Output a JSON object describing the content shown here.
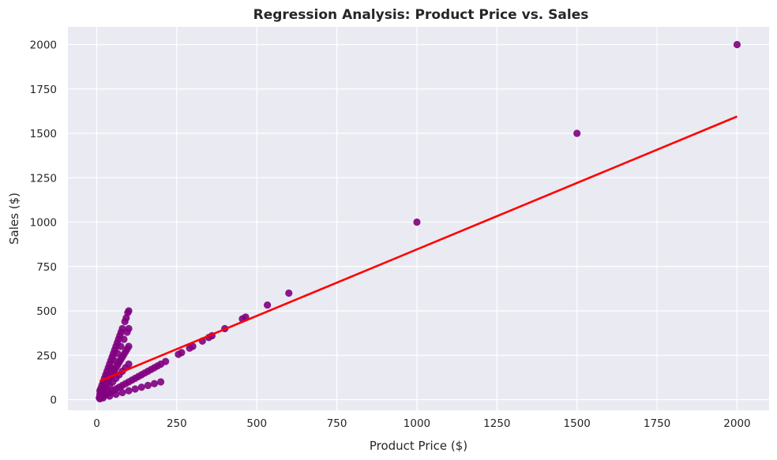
{
  "chart_data": {
    "type": "scatter",
    "title": "Regression Analysis: Product Price vs. Sales",
    "xlabel": "Product Price ($)",
    "ylabel": "Sales ($)",
    "xlim": [
      -90,
      2100
    ],
    "ylim": [
      -60,
      2100
    ],
    "xticks": [
      0,
      250,
      500,
      750,
      1000,
      1250,
      1500,
      1750,
      2000
    ],
    "yticks": [
      0,
      250,
      500,
      750,
      1000,
      1250,
      1500,
      1750,
      2000
    ],
    "grid": true,
    "point_color": "#800080",
    "line_color": "#ff0000",
    "background_color": "#eaeaf2",
    "series": [
      {
        "type": "scatter",
        "points": [
          [
            2000,
            2000
          ],
          [
            1500,
            1500
          ],
          [
            1000,
            1000
          ],
          [
            600,
            600
          ],
          [
            533,
            533
          ],
          [
            465,
            465
          ],
          [
            455,
            455
          ],
          [
            400,
            400
          ],
          [
            360,
            360
          ],
          [
            350,
            350
          ],
          [
            330,
            330
          ],
          [
            300,
            300
          ],
          [
            290,
            290
          ],
          [
            265,
            265
          ],
          [
            255,
            255
          ],
          [
            215,
            215
          ],
          [
            200,
            200
          ],
          [
            190,
            190
          ],
          [
            180,
            180
          ],
          [
            170,
            170
          ],
          [
            160,
            160
          ],
          [
            150,
            150
          ],
          [
            140,
            140
          ],
          [
            130,
            130
          ],
          [
            120,
            120
          ],
          [
            110,
            110
          ],
          [
            100,
            100
          ],
          [
            90,
            90
          ],
          [
            80,
            80
          ],
          [
            70,
            70
          ],
          [
            60,
            60
          ],
          [
            50,
            50
          ],
          [
            40,
            40
          ],
          [
            30,
            30
          ],
          [
            20,
            20
          ],
          [
            10,
            10
          ],
          [
            100,
            500
          ],
          [
            97,
            490
          ],
          [
            92,
            460
          ],
          [
            88,
            440
          ],
          [
            80,
            400
          ],
          [
            76,
            380
          ],
          [
            72,
            360
          ],
          [
            68,
            340
          ],
          [
            64,
            320
          ],
          [
            60,
            300
          ],
          [
            56,
            280
          ],
          [
            52,
            260
          ],
          [
            48,
            240
          ],
          [
            44,
            220
          ],
          [
            40,
            200
          ],
          [
            36,
            180
          ],
          [
            32,
            160
          ],
          [
            28,
            140
          ],
          [
            24,
            120
          ],
          [
            20,
            100
          ],
          [
            16,
            80
          ],
          [
            12,
            60
          ],
          [
            10,
            50
          ],
          [
            100,
            400
          ],
          [
            95,
            380
          ],
          [
            85,
            340
          ],
          [
            75,
            300
          ],
          [
            65,
            260
          ],
          [
            55,
            220
          ],
          [
            45,
            180
          ],
          [
            35,
            140
          ],
          [
            25,
            100
          ],
          [
            15,
            60
          ],
          [
            100,
            300
          ],
          [
            95,
            285
          ],
          [
            90,
            270
          ],
          [
            85,
            255
          ],
          [
            80,
            240
          ],
          [
            75,
            225
          ],
          [
            70,
            210
          ],
          [
            65,
            195
          ],
          [
            60,
            180
          ],
          [
            55,
            165
          ],
          [
            50,
            150
          ],
          [
            45,
            135
          ],
          [
            40,
            120
          ],
          [
            35,
            105
          ],
          [
            30,
            90
          ],
          [
            25,
            75
          ],
          [
            20,
            60
          ],
          [
            15,
            45
          ],
          [
            10,
            30
          ],
          [
            100,
            200
          ],
          [
            90,
            180
          ],
          [
            80,
            160
          ],
          [
            70,
            140
          ],
          [
            60,
            120
          ],
          [
            50,
            100
          ],
          [
            40,
            80
          ],
          [
            30,
            60
          ],
          [
            20,
            40
          ],
          [
            10,
            20
          ],
          [
            200,
            100
          ],
          [
            180,
            90
          ],
          [
            160,
            80
          ],
          [
            140,
            70
          ],
          [
            120,
            60
          ],
          [
            100,
            50
          ],
          [
            80,
            40
          ],
          [
            60,
            30
          ],
          [
            40,
            20
          ],
          [
            20,
            10
          ],
          [
            10,
            5
          ],
          [
            15,
            25
          ],
          [
            25,
            35
          ],
          [
            35,
            40
          ],
          [
            12,
            15
          ],
          [
            18,
            30
          ],
          [
            8,
            10
          ]
        ]
      },
      {
        "type": "line",
        "x": [
          10,
          2000
        ],
        "y": [
          105,
          1595
        ]
      }
    ]
  }
}
